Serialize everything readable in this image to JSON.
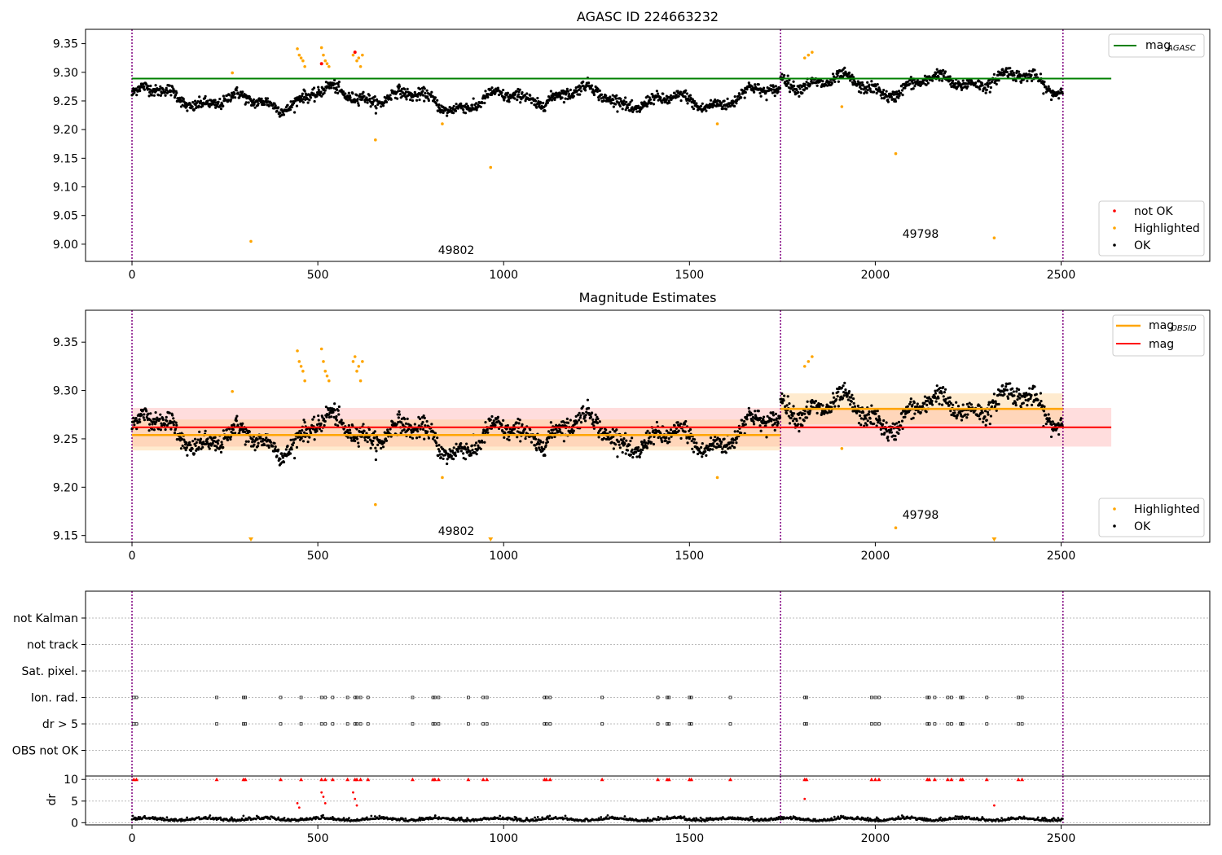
{
  "figure": {
    "title_top": "AGASC ID 224663232",
    "title_mid": "Magnitude Estimates"
  },
  "colors": {
    "ok": "#000000",
    "highlighted": "#ffa500",
    "not_ok": "#ff0000",
    "agasc_line": "#008000",
    "obsid_line": "#ffa500",
    "mag_line": "#ff0000",
    "obs_boundary": "#800080"
  },
  "annotations": {
    "obsid_a": "49802",
    "obsid_b": "49798"
  },
  "legends": {
    "top_line": "mag",
    "top_line_sub": "AGASC",
    "top_points": [
      "not OK",
      "Highlighted",
      "OK"
    ],
    "mid_line_1": "mag",
    "mid_line_1_sub": "OBSID",
    "mid_line_2": "mag",
    "mid_points": [
      "Highlighted",
      "OK"
    ]
  },
  "chart_data": [
    {
      "type": "scatter",
      "title": "AGASC ID 224663232",
      "xlim": [
        -125,
        2900
      ],
      "ylim": [
        8.97,
        9.375
      ],
      "x_ticks": [
        0,
        500,
        1000,
        1500,
        2000,
        2500
      ],
      "y_ticks": [
        9.0,
        9.05,
        9.1,
        9.15,
        9.2,
        9.25,
        9.3,
        9.35
      ],
      "y_tick_labels": [
        "9.00",
        "9.05",
        "9.10",
        "9.15",
        "9.20",
        "9.25",
        "9.30",
        "9.35"
      ],
      "obs_boundaries": [
        0,
        1745,
        2505
      ],
      "mag_agasc": 9.289,
      "mag_agasc_x_range": [
        0,
        2635
      ],
      "legend_position": "top-right / lower-right",
      "segments": [
        {
          "obsid": "49802",
          "x_range": [
            0,
            1745
          ],
          "mean": 9.254
        },
        {
          "obsid": "49798",
          "x_range": [
            1745,
            2505
          ],
          "mean": 9.281
        }
      ],
      "highlighted_points": [
        [
          270,
          9.299
        ],
        [
          320,
          9.005
        ],
        [
          445,
          9.341
        ],
        [
          450,
          9.33
        ],
        [
          455,
          9.325
        ],
        [
          460,
          9.32
        ],
        [
          465,
          9.31
        ],
        [
          510,
          9.343
        ],
        [
          515,
          9.33
        ],
        [
          520,
          9.32
        ],
        [
          525,
          9.315
        ],
        [
          530,
          9.31
        ],
        [
          595,
          9.33
        ],
        [
          600,
          9.335
        ],
        [
          605,
          9.32
        ],
        [
          610,
          9.325
        ],
        [
          615,
          9.31
        ],
        [
          620,
          9.33
        ],
        [
          655,
          9.182
        ],
        [
          835,
          9.21
        ],
        [
          965,
          9.134
        ],
        [
          1575,
          9.21
        ],
        [
          1810,
          9.325
        ],
        [
          1820,
          9.33
        ],
        [
          1830,
          9.335
        ],
        [
          1910,
          9.24
        ],
        [
          2055,
          9.158
        ],
        [
          2320,
          9.011
        ]
      ],
      "not_ok_points": [
        [
          510,
          9.315
        ],
        [
          600,
          9.335
        ]
      ]
    },
    {
      "type": "scatter",
      "title": "Magnitude Estimates",
      "xlim": [
        -125,
        2900
      ],
      "ylim": [
        9.143,
        9.383
      ],
      "x_ticks": [
        0,
        500,
        1000,
        1500,
        2000,
        2500
      ],
      "y_ticks": [
        9.15,
        9.2,
        9.25,
        9.3,
        9.35
      ],
      "y_tick_labels": [
        "9.15",
        "9.20",
        "9.25",
        "9.30",
        "9.35"
      ],
      "mag": 9.262,
      "mag_band": [
        9.242,
        9.282
      ],
      "obsid_means": [
        {
          "obsid": "49802",
          "x_range": [
            0,
            1745
          ],
          "mean": 9.254,
          "band": [
            9.238,
            9.27
          ]
        },
        {
          "obsid": "49798",
          "x_range": [
            1745,
            2505
          ],
          "mean": 9.281,
          "band": [
            9.265,
            9.297
          ]
        }
      ],
      "below_range_markers": [
        320,
        965,
        2320
      ]
    },
    {
      "type": "scatter",
      "x_ticks": [
        0,
        500,
        1000,
        1500,
        2000,
        2500
      ],
      "flag_rows": [
        "not Kalman",
        "not track",
        "Sat. pixel.",
        "Ion. rad.",
        "dr > 5",
        "OBS not OK"
      ],
      "flag_x_values": [
        5,
        12,
        228,
        300,
        305,
        400,
        455,
        510,
        520,
        540,
        580,
        600,
        605,
        615,
        635,
        755,
        810,
        815,
        825,
        905,
        945,
        955,
        1110,
        1115,
        1125,
        1265,
        1415,
        1440,
        1445,
        1500,
        1505,
        1610,
        1810,
        1815,
        1990,
        2000,
        2010,
        2140,
        2145,
        2160,
        2195,
        2205,
        2230,
        2235,
        2300,
        2385,
        2395
      ]
    },
    {
      "type": "scatter",
      "ylabel": "dr",
      "y_ticks": [
        0,
        5,
        10
      ],
      "y_tick_labels": [
        "0",
        "5",
        "10"
      ],
      "ylim": [
        -0.5,
        10.8
      ],
      "x_ticks": [
        0,
        500,
        1000,
        1500,
        2000,
        2500
      ],
      "capped_value": 10,
      "outliers": [
        [
          445,
          4.5
        ],
        [
          450,
          3.5
        ],
        [
          510,
          7.0
        ],
        [
          515,
          6.0
        ],
        [
          520,
          4.5
        ],
        [
          595,
          7.0
        ],
        [
          600,
          5.5
        ],
        [
          605,
          4.0
        ],
        [
          1810,
          5.5
        ],
        [
          2320,
          4.0
        ]
      ]
    }
  ]
}
